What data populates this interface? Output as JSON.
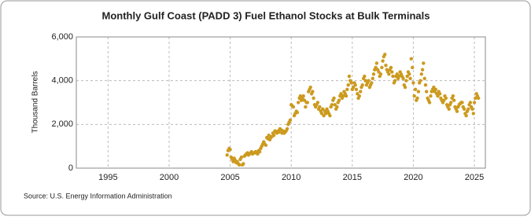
{
  "chart_data": {
    "type": "scatter",
    "title": "Monthly Gulf Coast (PADD 3) Fuel Ethanol Stocks at Bulk Terminals",
    "y_label": "Thousand Barrels",
    "source": "Source: U.S. Energy Information Administration",
    "color": "#cc9a1e",
    "grid": true,
    "xlim": [
      1992.4,
      2025.9
    ],
    "xticks": [
      1995,
      2000,
      2005,
      2010,
      2015,
      2020,
      2025
    ],
    "ylim": [
      0,
      6000
    ],
    "yticks": [
      0,
      {
        "value": 2000,
        "label": "2,000"
      },
      {
        "value": 4000,
        "label": "4,000"
      },
      {
        "value": 6000,
        "label": "6,000"
      }
    ],
    "x": [
      2004.75,
      2004.83,
      2004.92,
      2005.0,
      2005.08,
      2005.17,
      2005.25,
      2005.33,
      2005.42,
      2005.5,
      2005.58,
      2005.67,
      2005.75,
      2005.83,
      2005.92,
      2006.0,
      2006.08,
      2006.17,
      2006.25,
      2006.33,
      2006.42,
      2006.5,
      2006.58,
      2006.67,
      2006.75,
      2006.83,
      2006.92,
      2007.0,
      2007.08,
      2007.17,
      2007.25,
      2007.33,
      2007.42,
      2007.5,
      2007.58,
      2007.67,
      2007.75,
      2007.83,
      2007.92,
      2008.0,
      2008.08,
      2008.17,
      2008.25,
      2008.33,
      2008.42,
      2008.5,
      2008.58,
      2008.67,
      2008.75,
      2008.83,
      2008.92,
      2009.0,
      2009.08,
      2009.17,
      2009.25,
      2009.33,
      2009.42,
      2009.5,
      2009.58,
      2009.67,
      2009.75,
      2009.83,
      2009.92,
      2010.0,
      2010.08,
      2010.17,
      2010.25,
      2010.33,
      2010.42,
      2010.5,
      2010.58,
      2010.67,
      2010.75,
      2010.83,
      2010.92,
      2011.0,
      2011.08,
      2011.17,
      2011.25,
      2011.33,
      2011.42,
      2011.5,
      2011.58,
      2011.67,
      2011.75,
      2011.83,
      2011.92,
      2012.0,
      2012.08,
      2012.17,
      2012.25,
      2012.33,
      2012.42,
      2012.5,
      2012.58,
      2012.67,
      2012.75,
      2012.83,
      2012.92,
      2013.0,
      2013.08,
      2013.17,
      2013.25,
      2013.33,
      2013.42,
      2013.5,
      2013.58,
      2013.67,
      2013.75,
      2013.83,
      2013.92,
      2014.0,
      2014.08,
      2014.17,
      2014.25,
      2014.33,
      2014.42,
      2014.5,
      2014.58,
      2014.67,
      2014.75,
      2014.83,
      2014.92,
      2015.0,
      2015.08,
      2015.17,
      2015.25,
      2015.33,
      2015.42,
      2015.5,
      2015.58,
      2015.67,
      2015.75,
      2015.83,
      2015.92,
      2016.0,
      2016.08,
      2016.17,
      2016.25,
      2016.33,
      2016.42,
      2016.5,
      2016.58,
      2016.67,
      2016.75,
      2016.83,
      2016.92,
      2017.0,
      2017.08,
      2017.17,
      2017.25,
      2017.33,
      2017.42,
      2017.5,
      2017.58,
      2017.67,
      2017.75,
      2017.83,
      2017.92,
      2018.0,
      2018.08,
      2018.17,
      2018.25,
      2018.33,
      2018.42,
      2018.5,
      2018.58,
      2018.67,
      2018.75,
      2018.83,
      2018.92,
      2019.0,
      2019.08,
      2019.17,
      2019.25,
      2019.33,
      2019.42,
      2019.5,
      2019.58,
      2019.67,
      2019.75,
      2019.83,
      2019.92,
      2020.0,
      2020.08,
      2020.17,
      2020.25,
      2020.33,
      2020.42,
      2020.5,
      2020.58,
      2020.67,
      2020.75,
      2020.83,
      2020.92,
      2021.0,
      2021.08,
      2021.17,
      2021.25,
      2021.33,
      2021.42,
      2021.5,
      2021.58,
      2021.67,
      2021.75,
      2021.83,
      2021.92,
      2022.0,
      2022.08,
      2022.17,
      2022.25,
      2022.33,
      2022.42,
      2022.5,
      2022.58,
      2022.67,
      2022.75,
      2022.83,
      2022.92,
      2023.0,
      2023.08,
      2023.17,
      2023.25,
      2023.33,
      2023.42,
      2023.5,
      2023.58,
      2023.67,
      2023.75,
      2023.83,
      2023.92,
      2024.0,
      2024.08,
      2024.17,
      2024.25,
      2024.33,
      2024.42,
      2024.5,
      2024.58,
      2024.67,
      2024.75,
      2024.83,
      2024.92,
      2025.0,
      2025.08,
      2025.17,
      2025.25,
      2025.33
    ],
    "values": [
      600,
      800,
      900,
      850,
      500,
      400,
      300,
      450,
      350,
      250,
      300,
      200,
      150,
      400,
      500,
      150,
      200,
      550,
      600,
      650,
      700,
      600,
      650,
      700,
      750,
      650,
      700,
      700,
      750,
      700,
      650,
      800,
      750,
      900,
      1000,
      1100,
      1200,
      1100,
      1050,
      1400,
      1350,
      1500,
      1300,
      1400,
      1450,
      1600,
      1500,
      1700,
      1650,
      1600,
      1700,
      1650,
      1800,
      1750,
      1600,
      1700,
      1600,
      1650,
      1700,
      1800,
      2000,
      2100,
      2200,
      2900,
      2850,
      2800,
      2400,
      2500,
      2600,
      2550,
      3000,
      3200,
      3300,
      3100,
      3200,
      3300,
      3100,
      2800,
      3000,
      3000,
      3500,
      3600,
      3700,
      3400,
      3500,
      3200,
      2900,
      2800,
      2900,
      3000,
      2700,
      2800,
      2600,
      2500,
      2700,
      2400,
      2600,
      2500,
      2700,
      2600,
      2500,
      2400,
      2800,
      2900,
      3100,
      3200,
      2900,
      2700,
      2800,
      3000,
      3100,
      3300,
      3400,
      3200,
      3300,
      3500,
      3400,
      3300,
      3600,
      3800,
      4200,
      4000,
      3900,
      3600,
      3700,
      3900,
      3800,
      3600,
      3400,
      3200,
      3300,
      3500,
      3700,
      3800,
      4100,
      4200,
      4000,
      3800,
      3900,
      4000,
      3700,
      3800,
      3900,
      4100,
      4300,
      4500,
      4600,
      4800,
      4500,
      4400,
      4200,
      4300,
      4600,
      4900,
      5100,
      5200,
      4700,
      4500,
      4400,
      4300,
      4500,
      4600,
      4400,
      4200,
      3900,
      4000,
      4200,
      4300,
      4100,
      4200,
      4400,
      4300,
      4200,
      4100,
      3800,
      3700,
      4000,
      4200,
      4400,
      4300,
      4100,
      5000,
      4600,
      3900,
      3300,
      3600,
      3100,
      3200,
      3500,
      3900,
      4000,
      4300,
      4500,
      4800,
      4100,
      3800,
      3500,
      3200,
      3100,
      3000,
      3300,
      3500,
      3600,
      3700,
      3500,
      3600,
      3400,
      3300,
      3500,
      3400,
      3200,
      3100,
      3000,
      3100,
      3300,
      3200,
      2900,
      2800,
      2700,
      2900,
      3000,
      3200,
      3300,
      3100,
      2800,
      2700,
      2600,
      2800,
      2900,
      2950,
      3000,
      3000,
      2800,
      2700,
      2500,
      2400,
      2600,
      2700,
      2900,
      3000,
      2800,
      2700,
      2500,
      3000,
      3200,
      3400,
      3300,
      3200
    ]
  }
}
